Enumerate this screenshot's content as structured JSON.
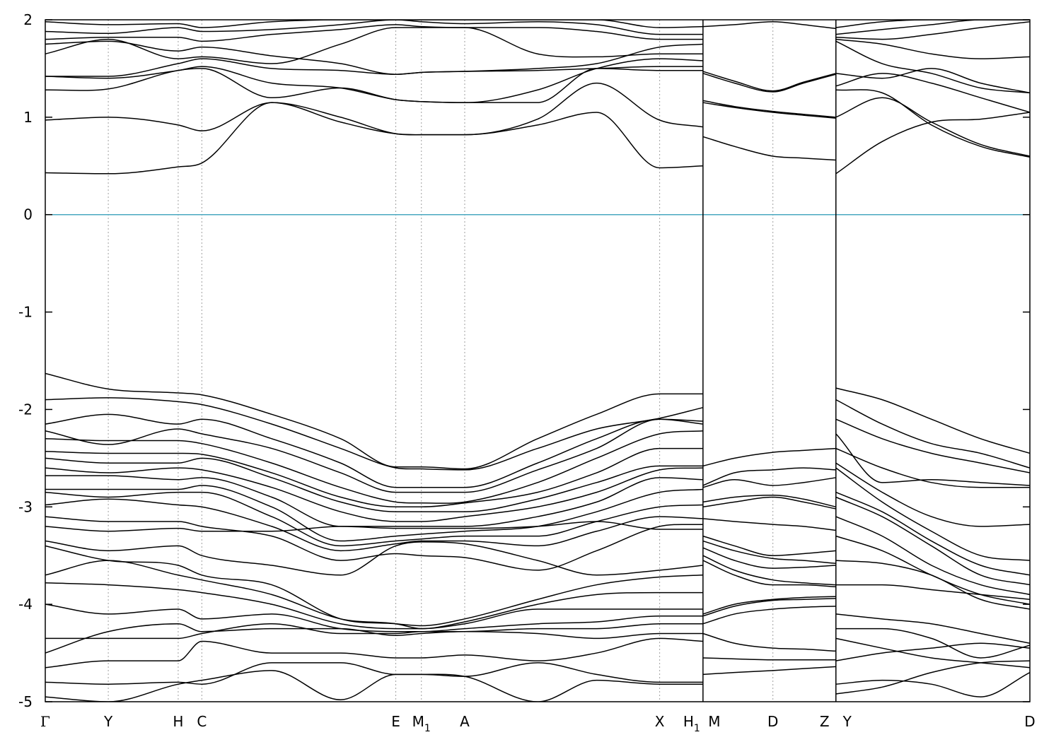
{
  "chart_data": {
    "type": "line",
    "title": "",
    "xlabel": "",
    "ylabel": "",
    "ylim": [
      -5,
      2
    ],
    "yticks": [
      2,
      1,
      0,
      -1,
      -2,
      -3,
      -4,
      -5
    ],
    "ytick_labels": [
      "2",
      "1",
      "0",
      "-1",
      "-2",
      "-3",
      "-4",
      "-5"
    ],
    "grid": "vertical dotted lines at k-points",
    "colors": {
      "bands": "#000000",
      "fermi": "#4aa8c0",
      "grid": "#a0a0a0"
    },
    "fermi_level": 0,
    "xlim": [
      0,
      1
    ],
    "kpoints": [
      {
        "label": "Γ",
        "sub": "",
        "x": 0.0,
        "break": false
      },
      {
        "label": "Y",
        "sub": "",
        "x": 0.064,
        "break": false
      },
      {
        "label": "H",
        "sub": "",
        "x": 0.135,
        "break": false
      },
      {
        "label": "C",
        "sub": "",
        "x": 0.159,
        "break": false
      },
      {
        "label": "E",
        "sub": "",
        "x": 0.356,
        "break": false
      },
      {
        "label": "M",
        "sub": "1",
        "x": 0.382,
        "break": false
      },
      {
        "label": "A",
        "sub": "",
        "x": 0.426,
        "break": false
      },
      {
        "label": "X",
        "sub": "",
        "x": 0.624,
        "break": false
      },
      {
        "label": "H",
        "sub": "1",
        "x": 0.668,
        "break": true
      },
      {
        "label": "M",
        "sub": "",
        "x": 0.668,
        "break": false
      },
      {
        "label": "D",
        "sub": "",
        "x": 0.739,
        "break": false
      },
      {
        "label": "Z",
        "sub": "",
        "x": 0.803,
        "break": true
      },
      {
        "label": "Y",
        "sub": "",
        "x": 0.803,
        "break": false
      },
      {
        "label": "D",
        "sub": "",
        "x": 1.0,
        "break": false
      }
    ],
    "segments": [
      {
        "x": [
          0.0,
          0.064,
          0.135,
          0.159,
          0.23,
          0.3,
          0.356,
          0.382,
          0.426,
          0.5,
          0.56,
          0.624,
          0.668
        ],
        "bands": [
          [
            0.43,
            0.42,
            0.49,
            0.53,
            1.15,
            0.95,
            0.83,
            0.82,
            0.82,
            0.92,
            1.05,
            0.48,
            0.5
          ],
          [
            0.97,
            1.0,
            0.92,
            0.86,
            1.15,
            1.0,
            0.83,
            0.82,
            0.82,
            0.98,
            1.35,
            0.97,
            0.9
          ],
          [
            1.28,
            1.29,
            1.48,
            1.5,
            1.2,
            1.3,
            1.18,
            1.16,
            1.15,
            1.28,
            1.5,
            1.6,
            1.58
          ],
          [
            1.42,
            1.4,
            1.48,
            1.52,
            1.35,
            1.3,
            1.18,
            1.16,
            1.15,
            1.15,
            1.5,
            1.48,
            1.48
          ],
          [
            1.42,
            1.42,
            1.55,
            1.6,
            1.5,
            1.48,
            1.44,
            1.46,
            1.47,
            1.48,
            1.5,
            1.52,
            1.52
          ],
          [
            1.65,
            1.8,
            1.6,
            1.62,
            1.55,
            1.75,
            1.92,
            1.92,
            1.92,
            1.65,
            1.62,
            1.65,
            1.65
          ],
          [
            1.75,
            1.78,
            1.68,
            1.72,
            1.63,
            1.55,
            1.44,
            1.46,
            1.47,
            1.5,
            1.55,
            1.72,
            1.75
          ],
          [
            1.8,
            1.82,
            1.82,
            1.78,
            1.85,
            1.9,
            1.95,
            1.93,
            1.92,
            1.92,
            1.88,
            1.8,
            1.8
          ],
          [
            1.88,
            1.86,
            1.92,
            1.88,
            1.9,
            1.95,
            2.0,
            1.98,
            1.96,
            1.98,
            1.95,
            1.85,
            1.85
          ],
          [
            1.98,
            1.95,
            1.96,
            1.92,
            1.98,
            2.0,
            2.0,
            2.0,
            2.0,
            2.0,
            2.0,
            1.92,
            1.93
          ]
        ]
      },
      {
        "x": [
          0.0,
          0.064,
          0.135,
          0.159,
          0.23,
          0.3,
          0.356,
          0.382,
          0.426,
          0.5,
          0.56,
          0.624,
          0.668
        ],
        "bands": [
          [
            -1.63,
            -1.79,
            -1.83,
            -1.85,
            -2.05,
            -2.3,
            -2.59,
            -2.59,
            -2.61,
            -2.3,
            -2.05,
            -1.84,
            -1.84
          ],
          [
            -1.9,
            -1.88,
            -1.92,
            -1.95,
            -2.15,
            -2.4,
            -2.6,
            -2.61,
            -2.62,
            -2.4,
            -2.2,
            -2.09,
            -1.98
          ],
          [
            -2.15,
            -2.05,
            -2.15,
            -2.1,
            -2.3,
            -2.55,
            -2.8,
            -2.8,
            -2.8,
            -2.55,
            -2.3,
            -2.1,
            -2.12
          ],
          [
            -2.22,
            -2.36,
            -2.2,
            -2.25,
            -2.4,
            -2.65,
            -2.85,
            -2.85,
            -2.85,
            -2.62,
            -2.4,
            -2.1,
            -2.15
          ],
          [
            -2.3,
            -2.32,
            -2.32,
            -2.35,
            -2.55,
            -2.8,
            -2.95,
            -2.96,
            -2.95,
            -2.75,
            -2.5,
            -2.25,
            -2.22
          ],
          [
            -2.43,
            -2.45,
            -2.45,
            -2.46,
            -2.65,
            -2.9,
            -3.0,
            -3.0,
            -2.96,
            -2.85,
            -2.65,
            -2.4,
            -2.4
          ],
          [
            -2.5,
            -2.55,
            -2.55,
            -2.5,
            -2.7,
            -2.95,
            -3.05,
            -3.05,
            -3.05,
            -2.92,
            -2.75,
            -2.58,
            -2.58
          ],
          [
            -2.6,
            -2.65,
            -2.6,
            -2.62,
            -2.8,
            -3.05,
            -3.15,
            -3.15,
            -3.1,
            -3.0,
            -2.85,
            -2.62,
            -2.6
          ],
          [
            -2.68,
            -2.68,
            -2.72,
            -2.7,
            -2.9,
            -3.2,
            -3.2,
            -3.2,
            -3.2,
            -3.1,
            -2.95,
            -2.7,
            -2.72
          ],
          [
            -2.82,
            -2.82,
            -2.82,
            -2.78,
            -3.0,
            -3.35,
            -3.3,
            -3.28,
            -3.25,
            -3.2,
            -3.05,
            -2.85,
            -2.82
          ],
          [
            -2.85,
            -2.9,
            -2.85,
            -2.85,
            -3.1,
            -3.4,
            -3.35,
            -3.33,
            -3.3,
            -3.3,
            -3.15,
            -3.0,
            -2.98
          ],
          [
            -2.98,
            -2.92,
            -2.98,
            -3.0,
            -3.2,
            -3.45,
            -3.38,
            -3.35,
            -3.35,
            -3.4,
            -3.25,
            -3.1,
            -3.12
          ],
          [
            -3.1,
            -3.15,
            -3.15,
            -3.2,
            -3.3,
            -3.55,
            -3.48,
            -3.5,
            -3.52,
            -3.65,
            -3.45,
            -3.2,
            -3.18
          ],
          [
            -3.2,
            -3.25,
            -3.22,
            -3.25,
            -3.25,
            -3.2,
            -3.22,
            -3.22,
            -3.22,
            -3.2,
            -3.15,
            -3.23,
            -3.23
          ],
          [
            -3.35,
            -3.45,
            -3.4,
            -3.5,
            -3.6,
            -3.7,
            -3.4,
            -3.36,
            -3.38,
            -3.55,
            -3.7,
            -3.65,
            -3.6
          ],
          [
            -3.4,
            -3.55,
            -3.6,
            -3.7,
            -3.8,
            -4.15,
            -4.2,
            -4.22,
            -4.15,
            -3.95,
            -3.8,
            -3.72,
            -3.7
          ],
          [
            -3.7,
            -3.55,
            -3.7,
            -3.75,
            -3.9,
            -4.15,
            -4.2,
            -4.25,
            -4.18,
            -4.0,
            -3.9,
            -3.88,
            -3.88
          ],
          [
            -3.78,
            -3.8,
            -3.85,
            -3.88,
            -4.0,
            -4.2,
            -4.25,
            -4.25,
            -4.2,
            -4.05,
            -4.05,
            -4.05,
            -4.05
          ],
          [
            -4.0,
            -4.1,
            -4.05,
            -4.15,
            -4.1,
            -4.25,
            -4.28,
            -4.28,
            -4.25,
            -4.2,
            -4.18,
            -4.12,
            -4.12
          ],
          [
            -4.35,
            -4.35,
            -4.35,
            -4.3,
            -4.2,
            -4.3,
            -4.3,
            -4.28,
            -4.28,
            -4.25,
            -4.25,
            -4.2,
            -4.2
          ],
          [
            -4.5,
            -4.28,
            -4.2,
            -4.28,
            -4.25,
            -4.25,
            -4.32,
            -4.3,
            -4.28,
            -4.3,
            -4.35,
            -4.3,
            -4.3
          ],
          [
            -4.65,
            -4.58,
            -4.58,
            -4.38,
            -4.5,
            -4.5,
            -4.55,
            -4.55,
            -4.52,
            -4.58,
            -4.5,
            -4.35,
            -4.38
          ],
          [
            -4.8,
            -4.82,
            -4.8,
            -4.82,
            -4.6,
            -4.6,
            -4.72,
            -4.72,
            -4.74,
            -4.6,
            -4.72,
            -4.8,
            -4.8
          ],
          [
            -4.95,
            -5.0,
            -4.82,
            -4.78,
            -4.68,
            -4.98,
            -4.72,
            -4.72,
            -4.74,
            -5.0,
            -4.78,
            -4.82,
            -4.82
          ]
        ]
      },
      {
        "x": [
          0.668,
          0.7,
          0.739,
          0.77,
          0.803
        ],
        "bands": [
          [
            0.8,
            0.7,
            0.6,
            0.58,
            0.56
          ],
          [
            1.15,
            1.1,
            1.05,
            1.02,
            0.99
          ],
          [
            1.17,
            1.11,
            1.06,
            1.03,
            1.0
          ],
          [
            1.45,
            1.35,
            1.26,
            1.35,
            1.44
          ],
          [
            1.47,
            1.37,
            1.27,
            1.36,
            1.45
          ],
          [
            1.93,
            1.95,
            1.98,
            1.95,
            1.91
          ]
        ]
      },
      {
        "x": [
          0.668,
          0.7,
          0.739,
          0.77,
          0.803
        ],
        "bands": [
          [
            -2.58,
            -2.5,
            -2.44,
            -2.42,
            -2.4
          ],
          [
            -2.78,
            -2.65,
            -2.62,
            -2.6,
            -2.62
          ],
          [
            -2.8,
            -2.72,
            -2.78,
            -2.75,
            -2.7
          ],
          [
            -2.95,
            -2.9,
            -2.88,
            -2.92,
            -3.0
          ],
          [
            -3.0,
            -2.95,
            -2.9,
            -2.95,
            -3.02
          ],
          [
            -3.12,
            -3.15,
            -3.18,
            -3.2,
            -3.24
          ],
          [
            -3.3,
            -3.4,
            -3.5,
            -3.48,
            -3.45
          ],
          [
            -3.35,
            -3.45,
            -3.53,
            -3.55,
            -3.58
          ],
          [
            -3.42,
            -3.55,
            -3.63,
            -3.62,
            -3.6
          ],
          [
            -3.5,
            -3.65,
            -3.75,
            -3.78,
            -3.8
          ],
          [
            -3.55,
            -3.7,
            -3.8,
            -3.8,
            -3.82
          ],
          [
            -4.1,
            -4.0,
            -3.95,
            -3.93,
            -3.92
          ],
          [
            -4.12,
            -4.02,
            -3.96,
            -3.95,
            -3.94
          ],
          [
            -4.2,
            -4.1,
            -4.05,
            -4.03,
            -4.02
          ],
          [
            -4.3,
            -4.4,
            -4.45,
            -4.46,
            -4.48
          ],
          [
            -4.55,
            -4.56,
            -4.57,
            -4.57,
            -4.57
          ],
          [
            -4.72,
            -4.7,
            -4.68,
            -4.66,
            -4.64
          ]
        ]
      },
      {
        "x": [
          0.803,
          0.85,
          0.9,
          0.95,
          1.0
        ],
        "bands": [
          [
            0.42,
            0.75,
            0.95,
            0.98,
            1.05
          ],
          [
            1.0,
            1.2,
            0.95,
            0.72,
            0.6
          ],
          [
            1.28,
            1.25,
            0.92,
            0.7,
            0.59
          ],
          [
            1.32,
            1.45,
            1.35,
            1.2,
            1.05
          ],
          [
            1.45,
            1.4,
            1.5,
            1.35,
            1.25
          ],
          [
            1.78,
            1.55,
            1.45,
            1.3,
            1.25
          ],
          [
            1.8,
            1.75,
            1.65,
            1.6,
            1.62
          ],
          [
            1.82,
            1.8,
            1.85,
            1.92,
            1.98
          ],
          [
            1.85,
            1.9,
            1.95,
            2.0,
            2.0
          ],
          [
            1.92,
            1.98,
            2.0,
            2.0,
            2.0
          ]
        ]
      },
      {
        "x": [
          0.803,
          0.85,
          0.9,
          0.95,
          1.0
        ],
        "bands": [
          [
            -1.78,
            -1.9,
            -2.1,
            -2.3,
            -2.45
          ],
          [
            -1.9,
            -2.15,
            -2.35,
            -2.45,
            -2.6
          ],
          [
            -2.1,
            -2.3,
            -2.45,
            -2.55,
            -2.65
          ],
          [
            -2.25,
            -2.75,
            -2.72,
            -2.75,
            -2.78
          ],
          [
            -2.4,
            -2.6,
            -2.75,
            -2.8,
            -2.8
          ],
          [
            -2.55,
            -2.85,
            -3.1,
            -3.2,
            -3.18
          ],
          [
            -2.6,
            -2.95,
            -3.25,
            -3.5,
            -3.55
          ],
          [
            -2.85,
            -3.05,
            -3.35,
            -3.6,
            -3.7
          ],
          [
            -2.9,
            -3.1,
            -3.4,
            -3.7,
            -3.8
          ],
          [
            -3.1,
            -3.3,
            -3.6,
            -3.8,
            -3.9
          ],
          [
            -3.3,
            -3.45,
            -3.7,
            -3.9,
            -4.0
          ],
          [
            -3.55,
            -3.58,
            -3.7,
            -3.95,
            -4.05
          ],
          [
            -3.8,
            -3.8,
            -3.85,
            -3.9,
            -3.95
          ],
          [
            -4.1,
            -4.15,
            -4.2,
            -4.3,
            -4.4
          ],
          [
            -4.25,
            -4.25,
            -4.35,
            -4.55,
            -4.42
          ],
          [
            -4.35,
            -4.45,
            -4.55,
            -4.6,
            -4.65
          ],
          [
            -4.58,
            -4.5,
            -4.45,
            -4.4,
            -4.45
          ],
          [
            -4.82,
            -4.78,
            -4.82,
            -4.95,
            -4.7
          ],
          [
            -4.92,
            -4.85,
            -4.7,
            -4.6,
            -4.58
          ]
        ]
      }
    ]
  }
}
